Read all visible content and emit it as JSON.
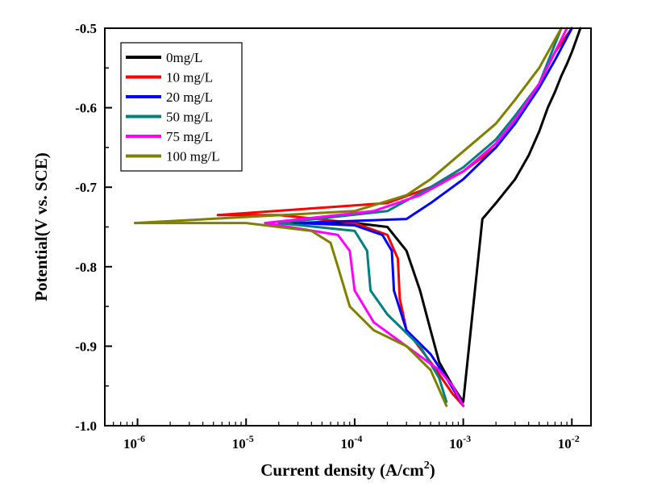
{
  "chart_data": {
    "type": "line",
    "title": "",
    "xlabel": "Current density (A/cm",
    "xlabel_sup": "2",
    "xlabel_end": ")",
    "ylabel": "Potential(V vs. SCE)",
    "x_scale": "log",
    "xlim": [
      5e-07,
      0.015
    ],
    "ylim": [
      -1.0,
      -0.5
    ],
    "x_ticks": [
      {
        "value": 1e-06,
        "base": "10",
        "exp": "-6"
      },
      {
        "value": 1e-05,
        "base": "10",
        "exp": "-5"
      },
      {
        "value": 0.0001,
        "base": "10",
        "exp": "-4"
      },
      {
        "value": 0.001,
        "base": "10",
        "exp": "-3"
      },
      {
        "value": 0.01,
        "base": "10",
        "exp": "-2"
      }
    ],
    "y_ticks": [
      {
        "value": -0.5,
        "label": "-0.5"
      },
      {
        "value": -0.6,
        "label": "-0.6"
      },
      {
        "value": -0.7,
        "label": "-0.7"
      },
      {
        "value": -0.8,
        "label": "-0.8"
      },
      {
        "value": -0.9,
        "label": "-0.9"
      },
      {
        "value": -1.0,
        "label": "-1.0"
      }
    ],
    "legend_position": "top-left",
    "series": [
      {
        "name": "0mg/L",
        "color": "#000000",
        "x": [
          2e-05,
          0.0001,
          0.0002,
          0.0003,
          0.0004,
          0.0005,
          0.0006,
          0.0008,
          0.001,
          0.0015,
          0.002,
          0.003,
          0.004,
          0.005,
          0.006,
          0.007,
          0.008,
          0.009,
          0.01,
          0.012
        ],
        "y": [
          -0.745,
          -0.745,
          -0.75,
          -0.78,
          -0.83,
          -0.88,
          -0.92,
          -0.95,
          -0.97,
          -0.74,
          -0.72,
          -0.69,
          -0.66,
          -0.63,
          -0.6,
          -0.58,
          -0.56,
          -0.545,
          -0.53,
          -0.5
        ]
      },
      {
        "name": "10 mg/L",
        "color": "#ff0000",
        "x": [
          5.5e-06,
          2e-05,
          0.0001,
          0.0002,
          0.00025,
          0.00026,
          0.0003,
          0.0005,
          0.0008,
          0.001,
          0.0002,
          0.0005,
          0.001,
          0.002,
          0.003,
          0.005,
          0.007,
          0.01
        ],
        "y": [
          -0.735,
          -0.735,
          -0.745,
          -0.76,
          -0.79,
          -0.84,
          -0.88,
          -0.92,
          -0.96,
          -0.975,
          -0.72,
          -0.7,
          -0.68,
          -0.65,
          -0.62,
          -0.57,
          -0.53,
          -0.5
        ]
      },
      {
        "name": "20 mg/L",
        "color": "#0000ff",
        "x": [
          3e-05,
          0.0001,
          0.00018,
          0.00022,
          0.00023,
          0.0003,
          0.0005,
          0.0007,
          0.001,
          0.0003,
          0.0005,
          0.001,
          0.002,
          0.003,
          0.005,
          0.007,
          0.01
        ],
        "y": [
          -0.745,
          -0.748,
          -0.76,
          -0.78,
          -0.83,
          -0.88,
          -0.91,
          -0.94,
          -0.975,
          -0.74,
          -0.72,
          -0.69,
          -0.65,
          -0.62,
          -0.575,
          -0.54,
          -0.5
        ]
      },
      {
        "name": "50 mg/L",
        "color": "#008080",
        "x": [
          2e-05,
          0.0001,
          0.00013,
          0.00014,
          0.0002,
          0.0004,
          0.0006,
          0.0007,
          0.0002,
          0.0005,
          0.001,
          0.002,
          0.003,
          0.005,
          0.008
        ],
        "y": [
          -0.745,
          -0.755,
          -0.78,
          -0.83,
          -0.86,
          -0.9,
          -0.94,
          -0.97,
          -0.73,
          -0.7,
          -0.675,
          -0.64,
          -0.61,
          -0.57,
          -0.5
        ]
      },
      {
        "name": "75 mg/L",
        "color": "#ff00ff",
        "x": [
          1.5e-05,
          7e-05,
          9e-05,
          0.0001,
          0.00015,
          0.0003,
          0.0006,
          0.0008,
          0.001,
          0.00015,
          0.0004,
          0.001,
          0.002,
          0.003,
          0.005,
          0.009
        ],
        "y": [
          -0.745,
          -0.76,
          -0.78,
          -0.83,
          -0.87,
          -0.9,
          -0.93,
          -0.95,
          -0.975,
          -0.73,
          -0.71,
          -0.68,
          -0.645,
          -0.615,
          -0.57,
          -0.5
        ]
      },
      {
        "name": "100 mg/L",
        "color": "#808000",
        "x": [
          9.5e-07,
          1e-05,
          4e-05,
          6e-05,
          7e-05,
          9e-05,
          0.00015,
          0.0003,
          0.0005,
          0.0007,
          0.0001,
          0.0003,
          0.0005,
          0.001,
          0.002,
          0.003,
          0.005,
          0.008
        ],
        "y": [
          -0.745,
          -0.745,
          -0.755,
          -0.77,
          -0.8,
          -0.85,
          -0.88,
          -0.9,
          -0.93,
          -0.975,
          -0.73,
          -0.71,
          -0.69,
          -0.655,
          -0.62,
          -0.59,
          -0.55,
          -0.5
        ]
      }
    ]
  }
}
